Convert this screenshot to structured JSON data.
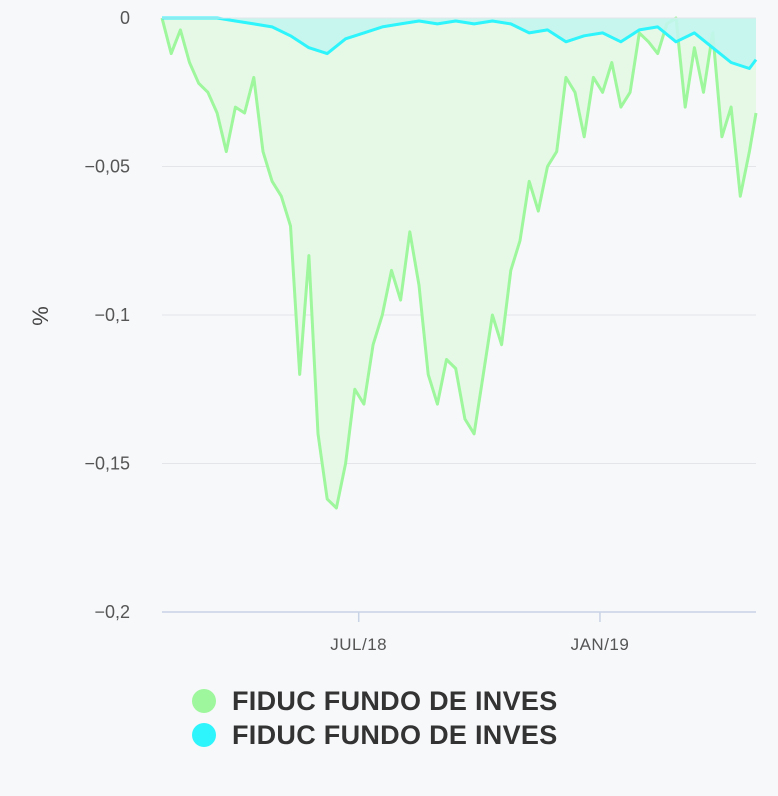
{
  "chart_data": {
    "type": "area",
    "title": "",
    "xlabel": "",
    "ylabel": "%",
    "ylim": [
      -0.2,
      0
    ],
    "yticks": [
      0,
      -0.05,
      -0.1,
      -0.15,
      -0.2
    ],
    "ytick_labels": [
      "0",
      "−0,05",
      "−0,1",
      "−0,15",
      "−0,2"
    ],
    "xlim": [
      "2018-02-01",
      "2019-04-30"
    ],
    "xticks": [
      "2018-07-01",
      "2019-01-01"
    ],
    "xtick_labels": [
      "JUL/18",
      "JAN/19"
    ],
    "grid": true,
    "legend_position": "bottom",
    "series": [
      {
        "name": "FIDUC FUNDO DE INVES",
        "color": "#9ef79c",
        "fill": "#e5f9e6",
        "x": [
          "2018-02-01",
          "2018-02-08",
          "2018-02-15",
          "2018-02-22",
          "2018-03-01",
          "2018-03-08",
          "2018-03-15",
          "2018-03-22",
          "2018-03-29",
          "2018-04-05",
          "2018-04-12",
          "2018-04-19",
          "2018-04-26",
          "2018-05-03",
          "2018-05-10",
          "2018-05-17",
          "2018-05-24",
          "2018-05-31",
          "2018-06-07",
          "2018-06-14",
          "2018-06-21",
          "2018-06-28",
          "2018-07-05",
          "2018-07-12",
          "2018-07-19",
          "2018-07-26",
          "2018-08-02",
          "2018-08-09",
          "2018-08-16",
          "2018-08-23",
          "2018-08-30",
          "2018-09-06",
          "2018-09-13",
          "2018-09-20",
          "2018-09-27",
          "2018-10-04",
          "2018-10-11",
          "2018-10-18",
          "2018-10-25",
          "2018-11-01",
          "2018-11-08",
          "2018-11-15",
          "2018-11-22",
          "2018-11-29",
          "2018-12-06",
          "2018-12-13",
          "2018-12-20",
          "2018-12-27",
          "2019-01-03",
          "2019-01-10",
          "2019-01-17",
          "2019-01-24",
          "2019-01-31",
          "2019-02-07",
          "2019-02-14",
          "2019-02-21",
          "2019-02-28",
          "2019-03-07",
          "2019-03-14",
          "2019-03-21",
          "2019-03-28",
          "2019-04-04",
          "2019-04-11",
          "2019-04-18",
          "2019-04-25",
          "2019-04-30"
        ],
        "values": [
          0,
          -0.012,
          -0.004,
          -0.015,
          -0.022,
          -0.025,
          -0.032,
          -0.045,
          -0.03,
          -0.032,
          -0.02,
          -0.045,
          -0.055,
          -0.06,
          -0.07,
          -0.12,
          -0.08,
          -0.14,
          -0.162,
          -0.165,
          -0.15,
          -0.125,
          -0.13,
          -0.11,
          -0.1,
          -0.085,
          -0.095,
          -0.072,
          -0.09,
          -0.12,
          -0.13,
          -0.115,
          -0.118,
          -0.135,
          -0.14,
          -0.12,
          -0.1,
          -0.11,
          -0.085,
          -0.075,
          -0.055,
          -0.065,
          -0.05,
          -0.045,
          -0.02,
          -0.025,
          -0.04,
          -0.02,
          -0.025,
          -0.015,
          -0.03,
          -0.025,
          -0.005,
          -0.008,
          -0.012,
          -0.002,
          0,
          -0.03,
          -0.01,
          -0.025,
          -0.005,
          -0.04,
          -0.03,
          -0.06,
          -0.045,
          -0.032
        ]
      },
      {
        "name": "FIDUC FUNDO DE INVES",
        "color": "#2ef4fb",
        "fill": "#c2f5ee",
        "x": [
          "2018-02-01",
          "2018-02-15",
          "2018-03-01",
          "2018-03-15",
          "2018-03-29",
          "2018-04-12",
          "2018-04-26",
          "2018-05-10",
          "2018-05-24",
          "2018-06-07",
          "2018-06-21",
          "2018-07-05",
          "2018-07-19",
          "2018-08-02",
          "2018-08-16",
          "2018-08-30",
          "2018-09-13",
          "2018-09-27",
          "2018-10-11",
          "2018-10-25",
          "2018-11-08",
          "2018-11-22",
          "2018-12-06",
          "2018-12-20",
          "2019-01-03",
          "2019-01-17",
          "2019-01-31",
          "2019-02-14",
          "2019-02-28",
          "2019-03-14",
          "2019-03-28",
          "2019-04-11",
          "2019-04-25",
          "2019-04-30"
        ],
        "values": [
          0,
          0,
          0,
          0,
          -0.001,
          -0.002,
          -0.003,
          -0.006,
          -0.01,
          -0.012,
          -0.007,
          -0.005,
          -0.003,
          -0.002,
          -0.001,
          -0.002,
          -0.001,
          -0.002,
          -0.001,
          -0.002,
          -0.005,
          -0.004,
          -0.008,
          -0.006,
          -0.005,
          -0.008,
          -0.004,
          -0.003,
          -0.008,
          -0.005,
          -0.01,
          -0.015,
          -0.017,
          -0.014
        ]
      }
    ]
  }
}
